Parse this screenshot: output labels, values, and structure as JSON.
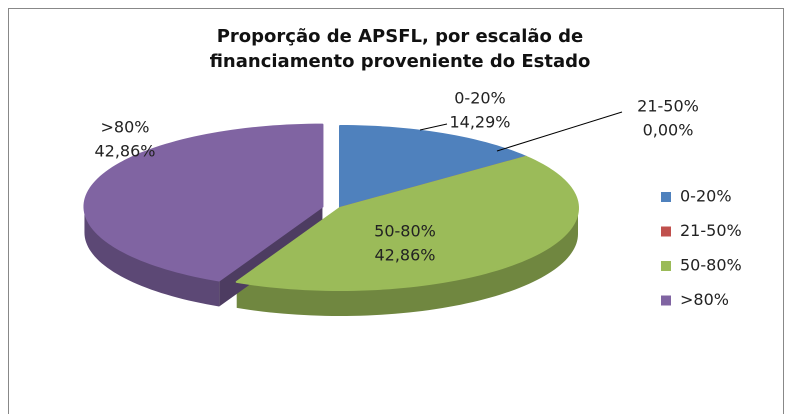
{
  "chart_data": {
    "type": "pie",
    "title": "Proporção de APSFL, por escalão de financiamento proveniente do Estado",
    "categories": [
      "0-20%",
      "21-50%",
      "50-80%",
      ">80%"
    ],
    "values": [
      14.29,
      0,
      42.86,
      42.86
    ],
    "value_labels": [
      "14,29%",
      "0,00%",
      "42,86%",
      "42,86%"
    ],
    "colors": [
      "#4f81bd",
      "#c0504d",
      "#9bbb59",
      "#8064a2"
    ],
    "legend": "right"
  }
}
